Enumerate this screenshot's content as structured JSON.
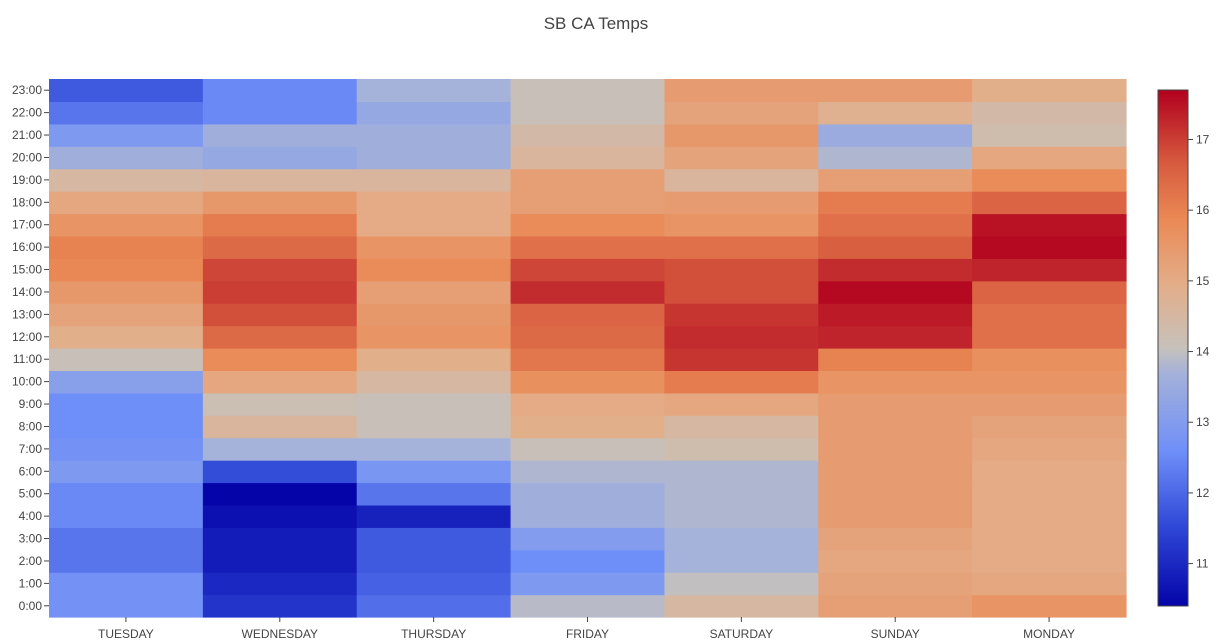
{
  "chart_data": {
    "type": "heatmap",
    "title": "SB CA Temps",
    "x": [
      "TUESDAY",
      "WEDNESDAY",
      "THURSDAY",
      "FRIDAY",
      "SATURDAY",
      "SUNDAY",
      "MONDAY"
    ],
    "y": [
      "0:00",
      "1:00",
      "2:00",
      "3:00",
      "4:00",
      "5:00",
      "6:00",
      "7:00",
      "8:00",
      "9:00",
      "10:00",
      "11:00",
      "12:00",
      "13:00",
      "14:00",
      "15:00",
      "16:00",
      "17:00",
      "18:00",
      "19:00",
      "20:00",
      "21:00",
      "22:00",
      "23:00"
    ],
    "z": [
      [
        12.7,
        11.2,
        12.1,
        13.9,
        14.5,
        15.3,
        15.6
      ],
      [
        12.7,
        11.0,
        11.9,
        12.9,
        14.0,
        15.2,
        15.1
      ],
      [
        12.2,
        10.8,
        11.8,
        12.6,
        13.7,
        15.1,
        15.0
      ],
      [
        12.2,
        10.8,
        11.8,
        13.0,
        13.7,
        15.2,
        15.0
      ],
      [
        12.5,
        10.6,
        10.9,
        13.6,
        13.8,
        15.4,
        15.0
      ],
      [
        12.5,
        10.4,
        12.2,
        13.6,
        13.8,
        15.4,
        15.0
      ],
      [
        12.9,
        11.6,
        12.8,
        13.8,
        13.8,
        15.4,
        15.0
      ],
      [
        12.7,
        13.7,
        13.7,
        14.1,
        14.3,
        15.4,
        15.1
      ],
      [
        12.6,
        14.6,
        14.1,
        14.9,
        14.5,
        15.4,
        15.2
      ],
      [
        12.6,
        14.2,
        14.1,
        15.0,
        15.1,
        15.4,
        15.4
      ],
      [
        13.1,
        15.1,
        14.5,
        15.7,
        16.1,
        15.6,
        15.6
      ],
      [
        14.1,
        15.8,
        14.9,
        16.2,
        17.1,
        16.0,
        15.7
      ],
      [
        14.9,
        16.4,
        15.6,
        16.4,
        17.2,
        17.3,
        16.3
      ],
      [
        15.2,
        16.8,
        15.5,
        16.5,
        17.1,
        17.4,
        16.3
      ],
      [
        15.5,
        17.0,
        15.3,
        17.2,
        16.8,
        17.6,
        16.5
      ],
      [
        15.9,
        16.9,
        15.8,
        16.9,
        16.8,
        17.2,
        17.3
      ],
      [
        16.0,
        16.4,
        15.6,
        16.3,
        16.3,
        16.6,
        17.6
      ],
      [
        15.6,
        16.1,
        15.0,
        15.8,
        15.6,
        16.3,
        17.5
      ],
      [
        15.1,
        15.5,
        15.0,
        15.3,
        15.4,
        16.1,
        16.5
      ],
      [
        14.5,
        14.6,
        14.6,
        15.3,
        14.6,
        15.3,
        15.8
      ],
      [
        13.6,
        13.4,
        13.6,
        14.6,
        15.2,
        13.8,
        15.1
      ],
      [
        12.9,
        13.6,
        13.6,
        14.4,
        15.5,
        13.5,
        14.3
      ],
      [
        12.2,
        12.5,
        13.4,
        14.1,
        15.2,
        14.8,
        14.4
      ],
      [
        11.8,
        12.5,
        13.7,
        14.1,
        15.4,
        15.4,
        14.9
      ]
    ],
    "colorscale": "coolwarm",
    "colorbar": {
      "range": [
        10.4,
        17.7
      ],
      "ticks": [
        11,
        12,
        13,
        14,
        15,
        16,
        17
      ]
    },
    "colorscale_stops": [
      [
        0.0,
        "#0404a8"
      ],
      [
        0.15,
        "#2e46d6"
      ],
      [
        0.3,
        "#6f8ff8"
      ],
      [
        0.45,
        "#a4b1da"
      ],
      [
        0.5,
        "#c6c1bb"
      ],
      [
        0.62,
        "#e3ae8a"
      ],
      [
        0.75,
        "#ea8955"
      ],
      [
        0.86,
        "#d65a3e"
      ],
      [
        1.0,
        "#b1001e"
      ]
    ]
  }
}
